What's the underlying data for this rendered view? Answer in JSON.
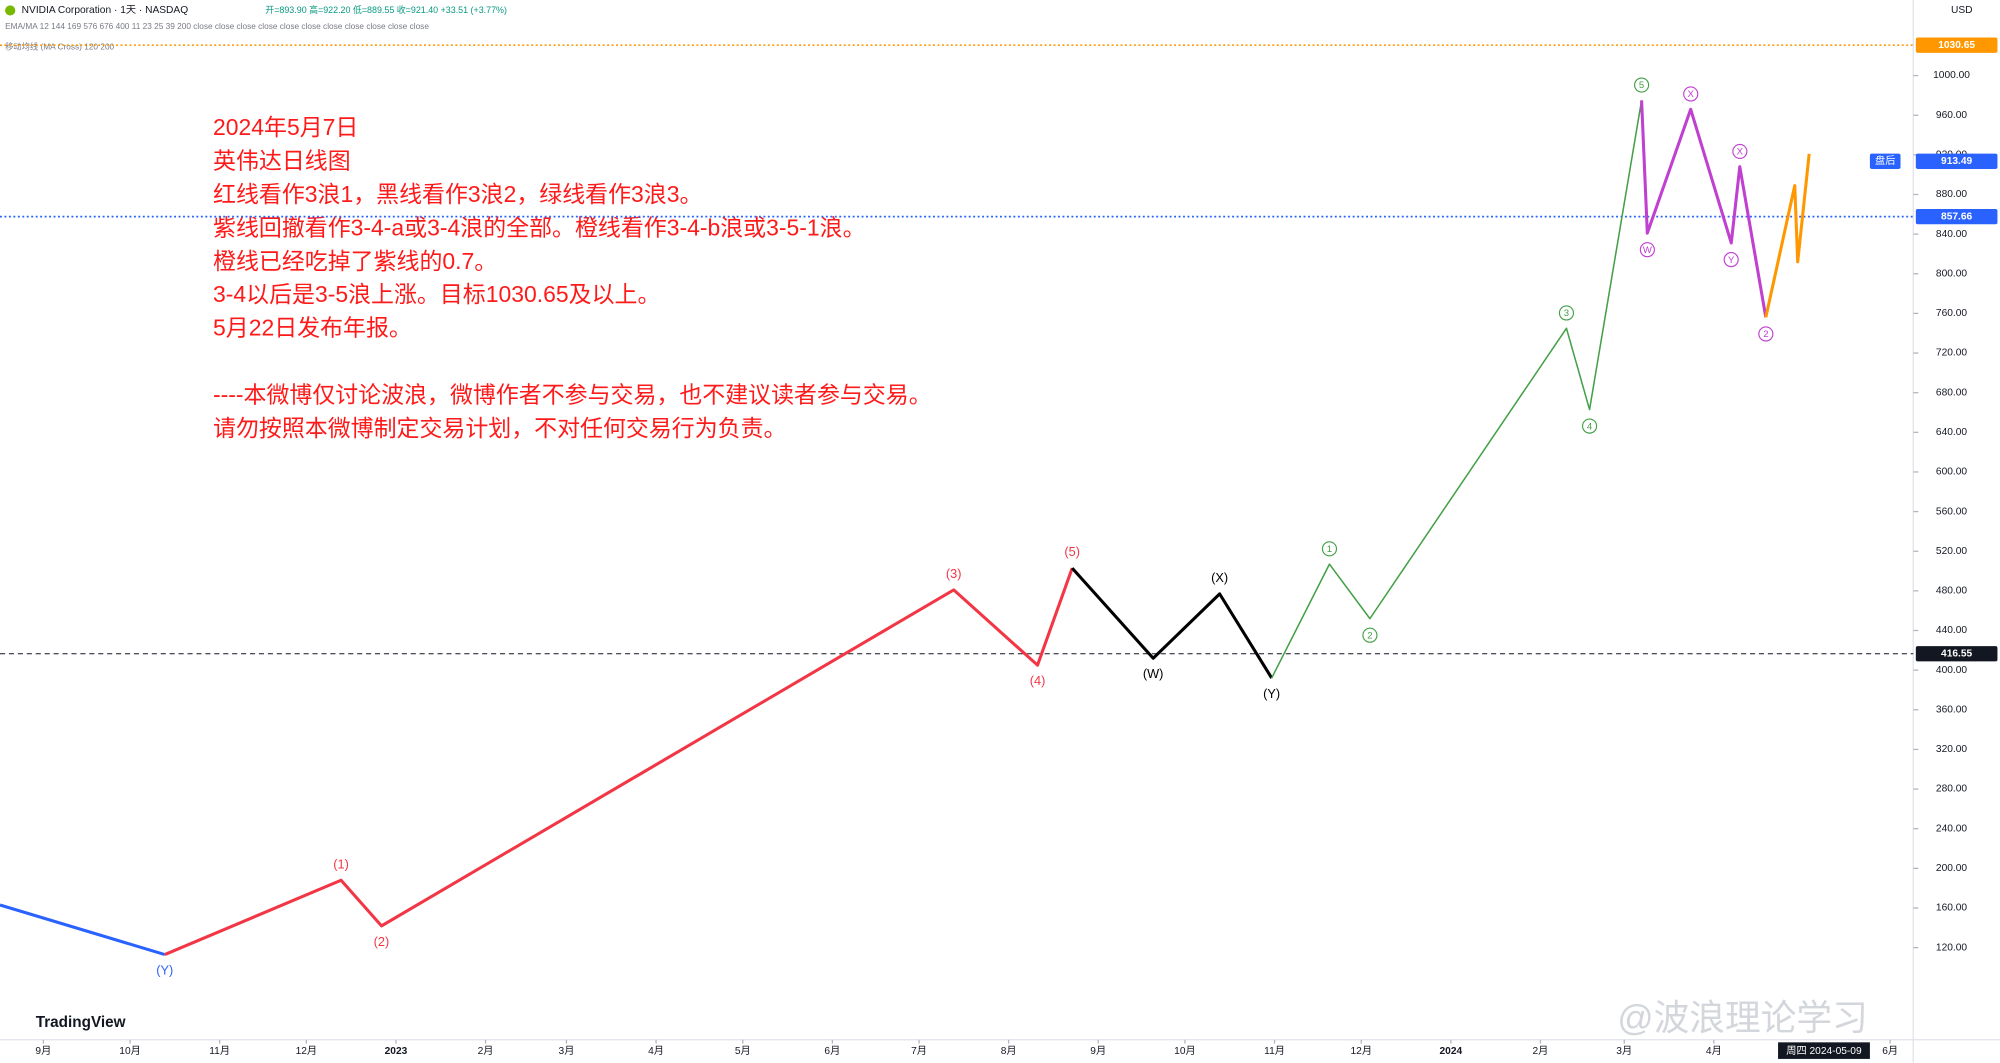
{
  "chart_data": {
    "type": "line",
    "header": {
      "symbol": "NVIDIA Corporation · 1天 · NASDAQ",
      "ohlc": "开=893.90 高=922.20 低=889.55 收=921.40 +33.51 (+3.77%)",
      "indicator_1": "EMA/MA 12 144 169 576 676 400 11 23 25 39 200 close close close close close close close close close close close",
      "indicator_2": "移动均线 (MA Cross) 120 200",
      "currency": "USD"
    },
    "annotation": [
      [
        "2024年5月7日",
        "英伟达日线图",
        "红线看作3浪1，黑线看作3浪2，绿线看作3浪3。",
        "紫线回撤看作3-4-a或3-4浪的全部。橙线看作3-4-b浪或3-5-1浪。",
        "橙线已经吃掉了紫线的0.7。",
        "3-4以后是3-5浪上涨。目标1030.65及以上。",
        "5月22日发布年报。"
      ],
      [
        "----本微博仅讨论波浪，微博作者不参与交易，也不建议读者参与交易。",
        "请勿按照本微博制定交易计划，不对任何交易行为负责。"
      ]
    ],
    "brand": "TradingView",
    "watermark": "@波浪理论学习",
    "crosshair_date": "周四 2024-05-09",
    "xlim": [
      "2022-08-17",
      "2024-06-09"
    ],
    "xticks": [
      {
        "value": "2022-09-01",
        "label": "9月"
      },
      {
        "value": "2022-10-01",
        "label": "10月"
      },
      {
        "value": "2022-11-01",
        "label": "11月"
      },
      {
        "value": "2022-12-01",
        "label": "12月"
      },
      {
        "value": "2023-01-01",
        "label": "2023"
      },
      {
        "value": "2023-02-01",
        "label": "2月"
      },
      {
        "value": "2023-03-01",
        "label": "3月"
      },
      {
        "value": "2023-04-01",
        "label": "4月"
      },
      {
        "value": "2023-05-01",
        "label": "5月"
      },
      {
        "value": "2023-06-01",
        "label": "6月"
      },
      {
        "value": "2023-07-01",
        "label": "7月"
      },
      {
        "value": "2023-08-01",
        "label": "8月"
      },
      {
        "value": "2023-09-01",
        "label": "9月"
      },
      {
        "value": "2023-10-01",
        "label": "10月"
      },
      {
        "value": "2023-11-01",
        "label": "11月"
      },
      {
        "value": "2023-12-01",
        "label": "12月"
      },
      {
        "value": "2024-01-01",
        "label": "2024"
      },
      {
        "value": "2024-02-01",
        "label": "2月"
      },
      {
        "value": "2024-03-01",
        "label": "3月"
      },
      {
        "value": "2024-04-01",
        "label": "4月"
      },
      {
        "value": "2024-06-01",
        "label": "6月"
      }
    ],
    "ylim": [
      27,
      1076
    ],
    "yticks": [
      {
        "value": 120,
        "label": "120.00"
      },
      {
        "value": 160,
        "label": "160.00"
      },
      {
        "value": 200,
        "label": "200.00"
      },
      {
        "value": 240,
        "label": "240.00"
      },
      {
        "value": 280,
        "label": "280.00"
      },
      {
        "value": 320,
        "label": "320.00"
      },
      {
        "value": 360,
        "label": "360.00"
      },
      {
        "value": 400,
        "label": "400.00"
      },
      {
        "value": 440,
        "label": "440.00"
      },
      {
        "value": 480,
        "label": "480.00"
      },
      {
        "value": 520,
        "label": "520.00"
      },
      {
        "value": 560,
        "label": "560.00"
      },
      {
        "value": 600,
        "label": "600.00"
      },
      {
        "value": 640,
        "label": "640.00"
      },
      {
        "value": 680,
        "label": "680.00"
      },
      {
        "value": 720,
        "label": "720.00"
      },
      {
        "value": 760,
        "label": "760.00"
      },
      {
        "value": 800,
        "label": "800.00"
      },
      {
        "value": 840,
        "label": "840.00"
      },
      {
        "value": 880,
        "label": "880.00"
      },
      {
        "value": 920,
        "label": "920.00"
      },
      {
        "value": 960,
        "label": "960.00"
      },
      {
        "value": 1000,
        "label": "1000.00"
      }
    ],
    "levels": [
      {
        "value": 1030.65,
        "color": "#ff9800",
        "line": "dotted"
      },
      {
        "value": 913.49,
        "color": "#2962ff",
        "tag": "盘后"
      },
      {
        "value": 857.66,
        "color": "#2962ff",
        "line": "dotted"
      },
      {
        "value": 416.55,
        "color": "#131722",
        "line": "dashed"
      }
    ],
    "series": [
      {
        "color": "#2962ff",
        "label_style": "plain",
        "x": [
          "2022-08-17",
          "2022-10-13"
        ],
        "values": [
          163,
          113
        ],
        "point_labels": [
          null,
          "(Y)"
        ]
      },
      {
        "color": "#f23645",
        "label_style": "plain",
        "x": [
          "2022-10-13",
          "2022-12-13",
          "2022-12-27",
          "2023-07-13",
          "2023-08-11",
          "2023-08-23"
        ],
        "values": [
          113,
          188,
          142,
          481,
          405,
          503
        ],
        "point_labels": [
          null,
          "(1)",
          "(2)",
          "(3)",
          "(4)",
          "(5)"
        ]
      },
      {
        "color": "#000000",
        "label_style": "plain",
        "x": [
          "2023-08-23",
          "2023-09-20",
          "2023-10-13",
          "2023-10-31"
        ],
        "values": [
          503,
          412,
          477,
          392
        ],
        "point_labels": [
          null,
          "(W)",
          "(X)",
          "(Y)"
        ]
      },
      {
        "color": "#43a047",
        "label_style": "circle",
        "x": [
          "2023-10-31",
          "2023-11-20",
          "2023-12-04",
          "2024-02-10",
          "2024-02-18",
          "2024-03-07"
        ],
        "values": [
          392,
          507,
          452,
          745,
          663,
          975
        ],
        "point_labels": [
          null,
          "1",
          "2",
          "3",
          "4",
          "5"
        ]
      },
      {
        "color": "#c040d0",
        "label_style": "circle",
        "x": [
          "2024-03-07",
          "2024-03-09",
          "2024-03-24",
          "2024-04-07",
          "2024-04-10",
          "2024-04-19"
        ],
        "values": [
          975,
          841,
          966,
          831,
          908,
          756
        ],
        "point_labels": [
          null,
          "W",
          "X",
          "Y",
          "X",
          "2"
        ]
      },
      {
        "color": "#ff9800",
        "label_style": "plain",
        "x": [
          "2024-04-19",
          "2024-04-29",
          "2024-04-30",
          "2024-05-04"
        ],
        "values": [
          756,
          889,
          812,
          921
        ],
        "point_labels": [
          null,
          null,
          null,
          null
        ]
      }
    ]
  }
}
